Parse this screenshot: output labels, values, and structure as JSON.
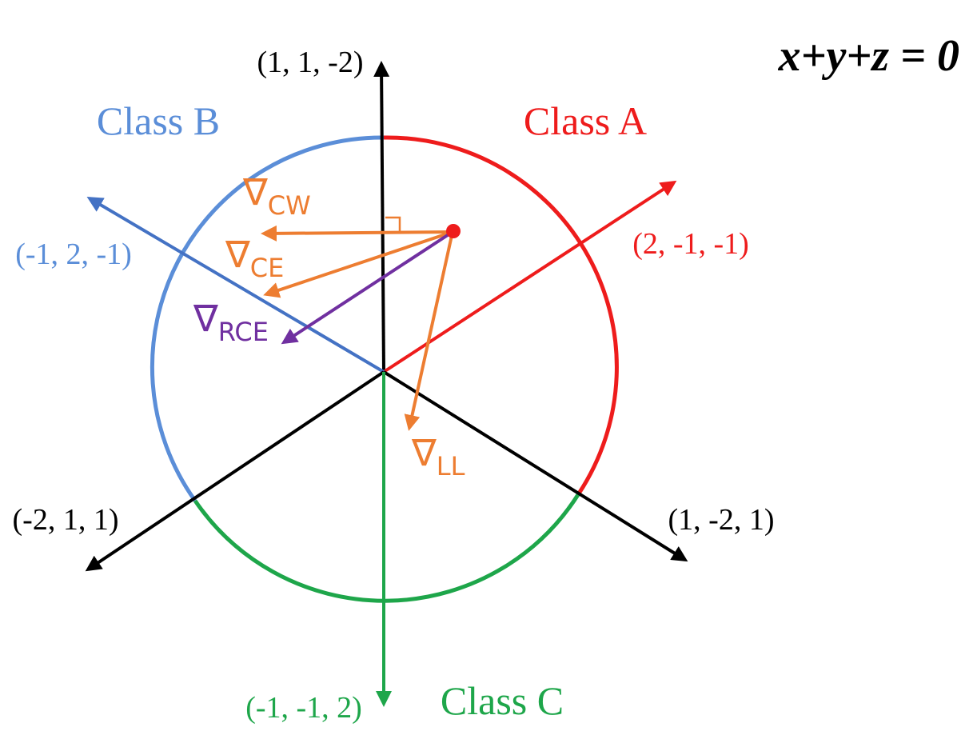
{
  "equation": "x+y+z = 0",
  "colors": {
    "class_a": "#ee1c1c",
    "class_b": "#5b8ed8",
    "class_b_arrow": "#4472c4",
    "class_c": "#1ea64a",
    "axis_black": "#000000",
    "gradient_orange": "#ed7d31",
    "gradient_purple": "#7030a0",
    "point": "#ee1c1c"
  },
  "classes": {
    "a": {
      "label": "Class A"
    },
    "b": {
      "label": "Class B"
    },
    "c": {
      "label": "Class C"
    }
  },
  "axes": {
    "up": "(1, 1, -2)",
    "upper_left": "(-1, 2, -1)",
    "upper_right": "(2, -1, -1)",
    "lower_left": "(-2, 1, 1)",
    "lower_right": "(1, -2, 1)",
    "down": "(-1, -1, 2)"
  },
  "gradients": {
    "cw": {
      "symbol": "∇",
      "sub": "CW"
    },
    "ce": {
      "symbol": "∇",
      "sub": "CE"
    },
    "rce": {
      "symbol": "∇",
      "sub": "RCE"
    },
    "ll": {
      "symbol": "∇",
      "sub": "LL"
    }
  }
}
